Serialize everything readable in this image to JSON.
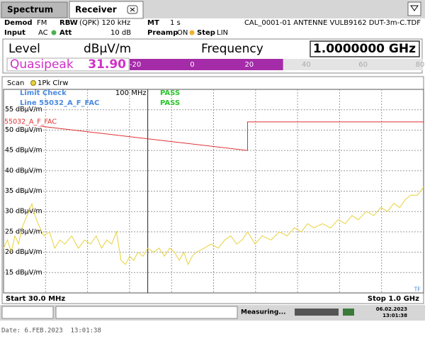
{
  "ui": {
    "tabs": [
      "Spectrum",
      "Receiver"
    ],
    "info": {
      "demod_label": "Demod",
      "demod": "FM",
      "rbw_label": "RBW",
      "rbw": "(QPK) 120 kHz",
      "mt_label": "MT",
      "mt": "1 s",
      "transducer": "CAL_0001-01 ANTENNE VULB9162 DUT-3m-C.TDF",
      "input_label": "Input",
      "input": "AC",
      "att_label": "Att",
      "att": "10 dB",
      "preamp_label": "Preamp",
      "preamp": "ON",
      "step_label": "Step",
      "step": "LIN"
    },
    "level": {
      "label": "Level",
      "unit": "dBµV/m",
      "frequency_label": "Frequency",
      "frequency": "1.0000000 GHz",
      "detector": "Quasipeak",
      "value": 31.9,
      "value_label": "31.90",
      "xlim": [
        -22,
        81
      ],
      "ticks": [
        -20,
        0,
        20,
        40,
        60,
        80
      ]
    },
    "status": {
      "message": "Measuring...",
      "date": "06.02.2023",
      "time": "13:01:38"
    },
    "footer": "Date: 6.FEB.2023  13:01:38"
  },
  "chart_data": {
    "type": "line",
    "log_x": true,
    "trace_label": "Scan",
    "limit_check": "Limit Check",
    "limit_check_result": "PASS",
    "line_check": "Line 55032_A_F_FAC",
    "line_check_result": "PASS",
    "start_label": "Start 30.0 MHz",
    "stop_label": "Stop 1.0 GHz",
    "transducer_flag": "TF",
    "xlim": [
      30,
      1000
    ],
    "ylim": [
      10,
      60
    ],
    "yticks": [
      {
        "value": 55,
        "label": "55 dBµV/m"
      },
      {
        "value": 50,
        "label": "50 dBµV/m"
      },
      {
        "value": 45,
        "label": "45 dBµV/m"
      },
      {
        "value": 40,
        "label": "40 dBµV/m"
      },
      {
        "value": 35,
        "label": "35 dBµV/m"
      },
      {
        "value": 30,
        "label": "30 dBµV/m"
      },
      {
        "value": 25,
        "label": "25 dBµV/m"
      },
      {
        "value": 20,
        "label": "20 dBµV/m"
      },
      {
        "value": 15,
        "label": "15 dBµV/m"
      }
    ],
    "display_line": {
      "value": 100,
      "label": "100 MHz"
    },
    "series": [
      {
        "name": "1Pk Clrw",
        "color": "#e8d23a",
        "x": [
          30,
          31,
          32,
          33,
          34,
          35,
          36,
          37,
          38,
          39,
          40,
          42,
          44,
          46,
          48,
          50,
          53,
          56,
          59,
          62,
          65,
          68,
          71,
          74,
          77,
          80,
          83,
          86,
          89,
          92,
          96,
          100,
          105,
          110,
          115,
          120,
          125,
          130,
          135,
          140,
          145,
          150,
          160,
          170,
          180,
          190,
          200,
          210,
          220,
          230,
          245,
          260,
          280,
          300,
          320,
          340,
          360,
          380,
          400,
          430,
          460,
          490,
          520,
          550,
          580,
          620,
          660,
          700,
          740,
          780,
          820,
          860,
          900,
          950,
          1000
        ],
        "values": [
          21,
          23,
          20,
          24,
          22,
          26,
          28,
          30,
          31.9,
          29,
          27,
          24,
          25,
          21,
          23,
          22,
          24,
          21,
          23,
          22,
          24,
          21,
          23,
          22,
          25,
          18,
          17,
          19,
          18,
          20,
          19,
          21,
          20,
          21,
          19,
          21,
          20,
          18,
          20,
          17,
          19,
          20,
          21,
          22,
          21,
          23,
          24,
          22,
          23,
          25,
          22,
          24,
          23,
          25,
          24,
          26,
          25,
          27,
          26,
          27,
          26,
          28,
          27,
          29,
          28,
          30,
          29,
          31,
          30,
          32,
          31,
          33,
          34,
          34,
          36
        ]
      },
      {
        "name": "55032_A_F_FAC",
        "color": "#e03030",
        "x": [
          30,
          230,
          230,
          1000
        ],
        "values": [
          52,
          45,
          52,
          52
        ]
      }
    ]
  }
}
